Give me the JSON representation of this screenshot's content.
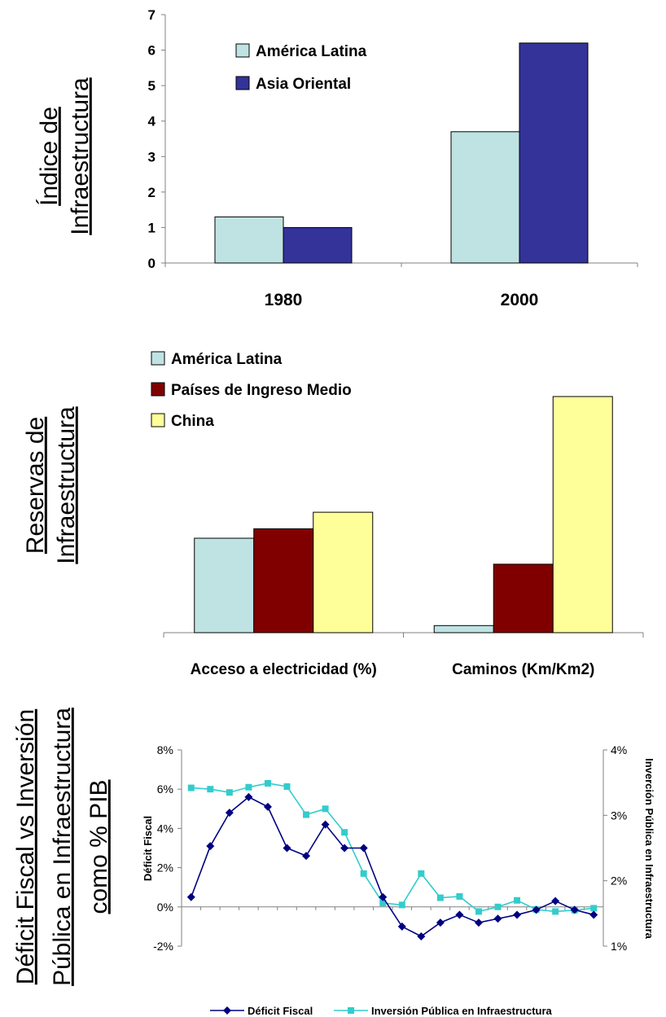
{
  "colors": {
    "latin_america": "#BFE3E3",
    "east_asia": "#333399",
    "middle_income": "#800000",
    "china": "#FFFF99",
    "deficit": "#000080",
    "investment": "#33CCCC",
    "axis": "#808080",
    "text": "#000000"
  },
  "chart_data": [
    {
      "type": "bar",
      "ylabel_lines": [
        "Índice de",
        "Infraestructura"
      ],
      "categories": [
        "1980",
        "2000"
      ],
      "yticks": [
        "0",
        "1",
        "2",
        "3",
        "4",
        "5",
        "6",
        "7"
      ],
      "ylim": [
        0,
        7
      ],
      "series": [
        {
          "name": "América Latina",
          "values": [
            1.3,
            3.7
          ]
        },
        {
          "name": "Asia Oriental",
          "values": [
            1.0,
            6.2
          ]
        }
      ],
      "legend_position": "top-left"
    },
    {
      "type": "bar",
      "ylabel_lines": [
        "Reservas de",
        "Infraestructura"
      ],
      "categories": [
        "Acceso a electricidad (%)",
        "Caminos (Km/Km2)"
      ],
      "ylim": [
        0,
        100
      ],
      "series": [
        {
          "name": "América Latina",
          "values": [
            40,
            3
          ]
        },
        {
          "name": "Países de Ingreso Medio",
          "values": [
            44,
            29
          ]
        },
        {
          "name": "China",
          "values": [
            51,
            100
          ]
        }
      ],
      "legend_position": "top-left"
    },
    {
      "type": "line",
      "ylabel_lines": [
        "Déficit Fiscal vs Inversión",
        "Pública en Infraestructura",
        "como % PIB"
      ],
      "left_axis_label": "Déficit Fiscal",
      "right_axis_label": "Inverción Pública en Infraestructura",
      "left_ticks": [
        "8%",
        "6%",
        "4%",
        "2%",
        "0%",
        "-2%"
      ],
      "right_ticks": [
        "4%",
        "3%",
        "2%",
        "1%"
      ],
      "ylim_left": [
        -2,
        8
      ],
      "ylim_right": [
        1,
        4
      ],
      "series": [
        {
          "name": "Déficit Fiscal",
          "axis": "left",
          "values": [
            0.5,
            3.1,
            4.8,
            5.6,
            5.1,
            3.0,
            2.6,
            4.2,
            3.0,
            3.0,
            0.5,
            -1.0,
            -1.5,
            -0.8,
            -0.4,
            -0.8,
            -0.6,
            -0.4,
            -0.15,
            0.3,
            -0.15,
            -0.4
          ]
        },
        {
          "name": "Inversión Pública en Infraestructura",
          "axis": "right",
          "values": [
            3.42,
            3.4,
            3.35,
            3.43,
            3.49,
            3.44,
            3.01,
            3.1,
            2.74,
            2.11,
            1.66,
            1.63,
            2.11,
            1.74,
            1.76,
            1.53,
            1.6,
            1.7,
            1.56,
            1.53,
            1.55,
            1.58
          ]
        }
      ],
      "legend_position": "bottom"
    }
  ]
}
